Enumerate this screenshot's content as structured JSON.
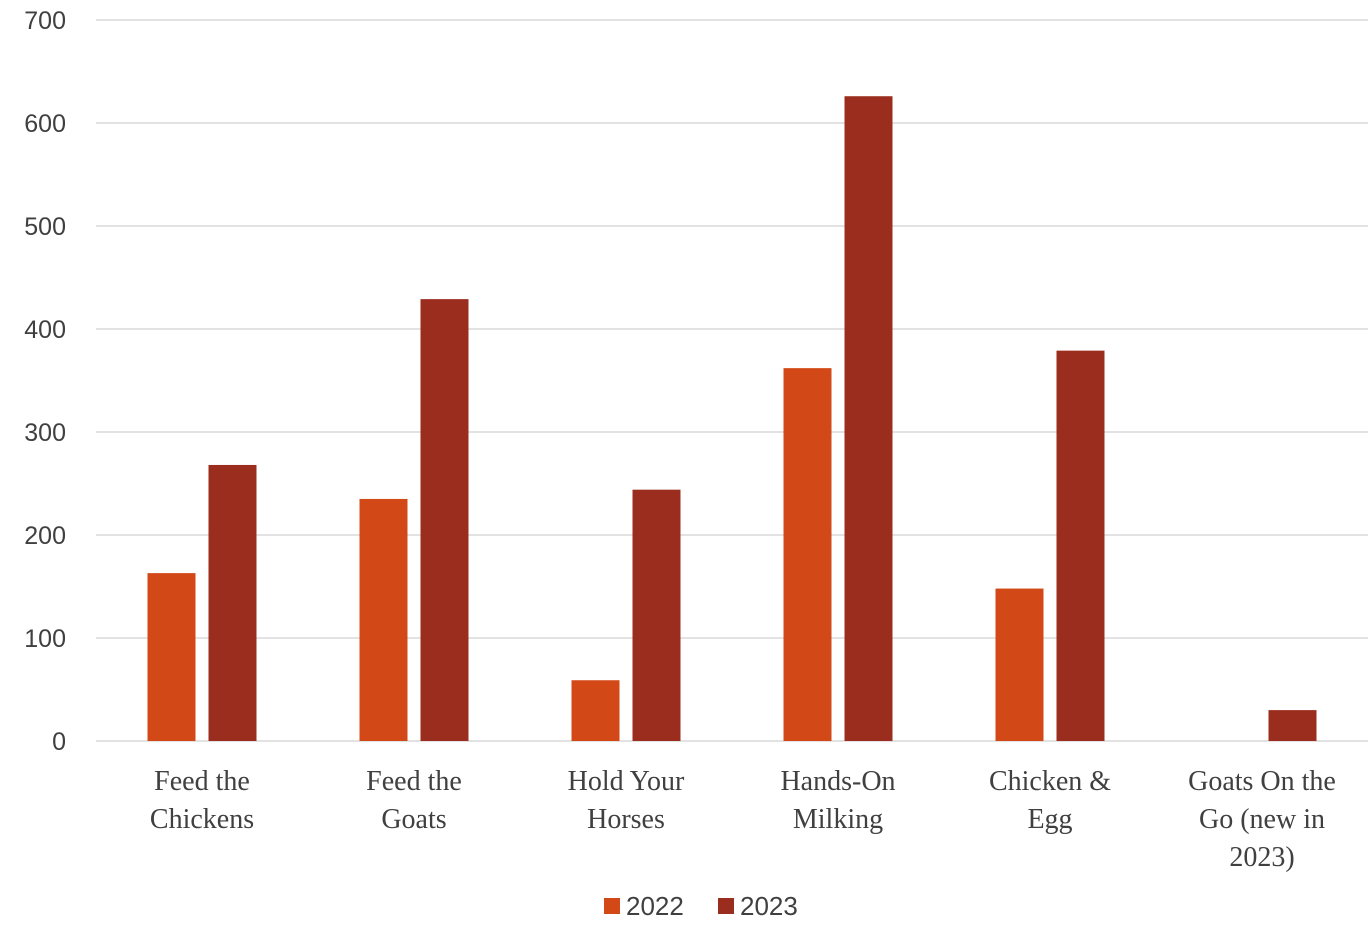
{
  "chart_data": {
    "type": "bar",
    "title": "",
    "xlabel": "",
    "ylabel": "",
    "categories": [
      [
        "Feed the",
        "Chickens"
      ],
      [
        "Feed the",
        "Goats"
      ],
      [
        "Hold Your",
        "Horses"
      ],
      [
        "Hands-On",
        "Milking"
      ],
      [
        "Chicken &",
        "Egg"
      ],
      [
        "Goats On the",
        "Go (new in",
        "2023)"
      ]
    ],
    "series": [
      {
        "name": "2022",
        "color": "#d34817",
        "values": [
          163,
          235,
          59,
          362,
          148,
          0
        ]
      },
      {
        "name": "2023",
        "color": "#9b2d1f",
        "values": [
          268,
          429,
          244,
          626,
          379,
          30
        ]
      }
    ],
    "ylim": [
      0,
      700
    ],
    "yticks": [
      0,
      100,
      200,
      300,
      400,
      500,
      600,
      700
    ],
    "grid": true,
    "legend": "bottom"
  }
}
